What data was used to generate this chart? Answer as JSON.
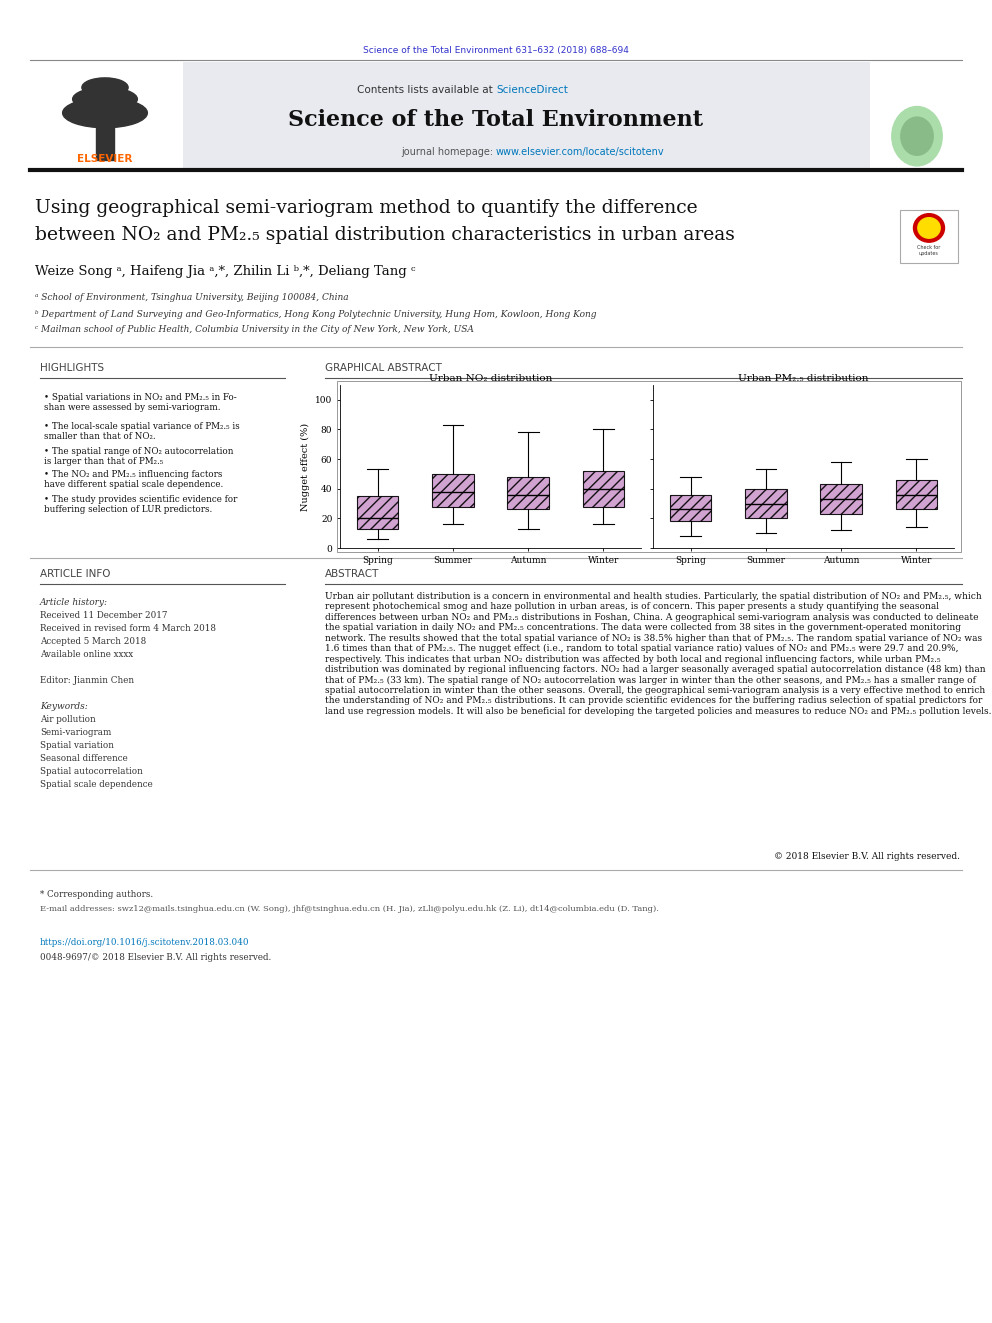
{
  "page_width": 9.92,
  "page_height": 13.23,
  "background_color": "#ffffff",
  "journal_ref_text": "Science of the Total Environment 631–632 (2018) 688–694",
  "journal_ref_color": "#3333cc",
  "header_bg_color": "#e8eaf0",
  "header_title": "Science of the Total Environment",
  "header_subtitle_left": "Contents lists available at ",
  "header_sciencedirect": "ScienceDirect",
  "header_link_color": "#0077bb",
  "header_journal_text": "journal homepage: ",
  "header_journal_url": "www.elsevier.com/locate/scitotenv",
  "elsevier_color": "#FF6600",
  "paper_title_line1": "Using geographical semi-variogram method to quantify the difference",
  "paper_title_line2": "between NO₂ and PM₂.₅ spatial distribution characteristics in urban areas",
  "authors_text": "Weize Song ᵃ, Haifeng Jia ᵃ,*, Zhilin Li ᵇ,*, Deliang Tang ᶜ",
  "affil_a": "ᵃ School of Environment, Tsinghua University, Beijing 100084, China",
  "affil_b": "ᵇ Department of Land Surveying and Geo-Informatics, Hong Kong Polytechnic University, Hung Hom, Kowloon, Hong Kong",
  "affil_c": "ᶜ Mailman school of Public Health, Columbia University in the City of New York, New York, USA",
  "highlights_title": "HIGHLIGHTS",
  "highlights": [
    "Spatial variations in NO₂ and PM₂.₅ in Fo-\nshan were assessed by semi-variogram.",
    "The local-scale spatial variance of PM₂.₅ is\nsmaller than that of NO₂.",
    "The spatial range of NO₂ autocorrelation\nis larger than that of PM₂.₅",
    "The NO₂ and PM₂.₅ influencing factors\nhave different spatial scale dependence.",
    "The study provides scientific evidence for\nbuffering selection of LUR predictors."
  ],
  "graphical_abstract_title": "GRAPHICAL ABSTRACT",
  "no2_title": "Urban NO₂ distribution",
  "pm25_title": "Urban PM₂.₅ distribution",
  "ylabel": "Nugget effect (%)",
  "seasons": [
    "Spring",
    "Summer",
    "Autumn",
    "Winter"
  ],
  "no2_boxes": {
    "Spring": {
      "q1": 13,
      "median": 20,
      "q3": 35,
      "whislo": 6,
      "whishi": 53
    },
    "Summer": {
      "q1": 28,
      "median": 38,
      "q3": 50,
      "whislo": 16,
      "whishi": 83
    },
    "Autumn": {
      "q1": 26,
      "median": 36,
      "q3": 48,
      "whislo": 13,
      "whishi": 78
    },
    "Winter": {
      "q1": 28,
      "median": 40,
      "q3": 52,
      "whislo": 16,
      "whishi": 80
    }
  },
  "pm25_boxes": {
    "Spring": {
      "q1": 18,
      "median": 26,
      "q3": 36,
      "whislo": 8,
      "whishi": 48
    },
    "Summer": {
      "q1": 20,
      "median": 30,
      "q3": 40,
      "whislo": 10,
      "whishi": 53
    },
    "Autumn": {
      "q1": 23,
      "median": 33,
      "q3": 43,
      "whislo": 12,
      "whishi": 58
    },
    "Winter": {
      "q1": 26,
      "median": 36,
      "q3": 46,
      "whislo": 14,
      "whishi": 60
    }
  },
  "box_color": "#cc99cc",
  "article_info_title": "ARTICLE INFO",
  "article_history_label": "Article history:",
  "received_label": "Received 11 December 2017",
  "revised_label": "Received in revised form 4 March 2018",
  "accepted_label": "Accepted 5 March 2018",
  "online_label": "Available online xxxx",
  "editor_label": "Editor: Jianmin Chen",
  "keywords_label": "Keywords:",
  "keywords": [
    "Air pollution",
    "Semi-variogram",
    "Spatial variation",
    "Seasonal difference",
    "Spatial autocorrelation",
    "Spatial scale dependence"
  ],
  "abstract_title": "ABSTRACT",
  "abstract_text": "Urban air pollutant distribution is a concern in environmental and health studies. Particularly, the spatial distribution of NO₂ and PM₂.₅, which represent photochemical smog and haze pollution in urban areas, is of concern. This paper presents a study quantifying the seasonal differences between urban NO₂ and PM₂.₅ distributions in Foshan, China. A geographical semi-variogram analysis was conducted to delineate the spatial variation in daily NO₂ and PM₂.₅ concentrations. The data were collected from 38 sites in the government-operated monitoring network. The results showed that the total spatial variance of NO₂ is 38.5% higher than that of PM₂.₅. The random spatial variance of NO₂ was 1.6 times than that of PM₂.₅. The nugget effect (i.e., random to total spatial variance ratio) values of NO₂ and PM₂.₅ were 29.7 and 20.9%, respectively. This indicates that urban NO₂ distribution was affected by both local and regional influencing factors, while urban PM₂.₅ distribution was dominated by regional influencing factors. NO₂ had a larger seasonally averaged spatial autocorrelation distance (48 km) than that of PM₂.₅ (33 km). The spatial range of NO₂ autocorrelation was larger in winter than the other seasons, and PM₂.₅ has a smaller range of spatial autocorrelation in winter than the other seasons. Overall, the geographical semi-variogram analysis is a very effective method to enrich the understanding of NO₂ and PM₂.₅ distributions. It can provide scientific evidences for the buffering radius selection of spatial predictors for land use regression models. It will also be beneficial for developing the targeted policies and measures to reduce NO₂ and PM₂.₅ pollution levels.",
  "copyright_text": "© 2018 Elsevier B.V. All rights reserved.",
  "footnote_star": "* Corresponding authors.",
  "footnote_email": "E-mail addresses: swz12@mails.tsinghua.edu.cn (W. Song), jhf@tsinghua.edu.cn (H. Jia), zLli@polyu.edu.hk (Z. Li), dt14@columbia.edu (D. Tang).",
  "doi_text": "https://doi.org/10.1016/j.scitotenv.2018.03.040",
  "issn_text": "0048-9697/© 2018 Elsevier B.V. All rights reserved."
}
